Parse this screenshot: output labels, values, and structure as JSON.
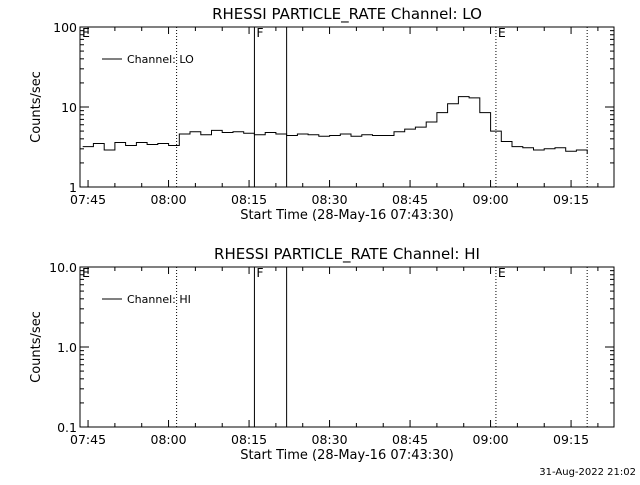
{
  "footer": {
    "timestamp": "31-Aug-2022 21:02"
  },
  "chart_data": [
    {
      "type": "line",
      "title": "RHESSI PARTICLE_RATE Channel: LO",
      "xlabel": "Start Time (28-May-16 07:43:30)",
      "ylabel": "Counts/sec",
      "yscale": "log",
      "ylim": [
        1,
        100
      ],
      "xlim": [
        "07:43:30",
        "09:23:00"
      ],
      "xticks": [
        "07:45",
        "08:00",
        "08:15",
        "08:30",
        "08:45",
        "09:00",
        "09:15"
      ],
      "yticks": [
        "1",
        "10",
        "100"
      ],
      "legend": {
        "placement": "top-left",
        "entries": [
          "Channel: LO"
        ]
      },
      "markers": [
        {
          "label": "E",
          "time": "07:43:30",
          "style": "dotted"
        },
        {
          "label": "",
          "time": "08:01:30",
          "style": "dotted"
        },
        {
          "label": "F",
          "time": "08:16:00",
          "style": "solid"
        },
        {
          "label": "",
          "time": "08:22:00",
          "style": "solid"
        },
        {
          "label": "E",
          "time": "09:01:00",
          "style": "dotted"
        },
        {
          "label": "",
          "time": "09:18:00",
          "style": "dotted"
        }
      ],
      "series": [
        {
          "name": "Channel: LO",
          "x": [
            "07:44",
            "07:46",
            "07:48",
            "07:50",
            "07:52",
            "07:54",
            "07:56",
            "07:58",
            "08:00",
            "08:02",
            "08:04",
            "08:06",
            "08:08",
            "08:10",
            "08:12",
            "08:14",
            "08:16",
            "08:18",
            "08:20",
            "08:22",
            "08:24",
            "08:26",
            "08:28",
            "08:30",
            "08:32",
            "08:34",
            "08:36",
            "08:38",
            "08:40",
            "08:42",
            "08:44",
            "08:46",
            "08:48",
            "08:50",
            "08:52",
            "08:54",
            "08:56",
            "08:58",
            "09:00",
            "09:02",
            "09:04",
            "09:06",
            "09:08",
            "09:10",
            "09:12",
            "09:14",
            "09:16",
            "09:18"
          ],
          "y": [
            3.2,
            3.5,
            2.9,
            3.6,
            3.3,
            3.6,
            3.4,
            3.5,
            3.3,
            4.6,
            4.9,
            4.5,
            5.1,
            4.8,
            4.9,
            4.7,
            4.5,
            4.8,
            4.6,
            4.4,
            4.6,
            4.5,
            4.3,
            4.4,
            4.6,
            4.3,
            4.5,
            4.4,
            4.4,
            4.9,
            5.3,
            5.6,
            6.5,
            8.5,
            11.0,
            13.5,
            13.0,
            8.5,
            5.0,
            3.7,
            3.2,
            3.1,
            2.9,
            3.0,
            3.1,
            2.8,
            2.9,
            2.6
          ]
        }
      ]
    },
    {
      "type": "line",
      "title": "RHESSI PARTICLE_RATE Channel: HI",
      "xlabel": "Start Time (28-May-16 07:43:30)",
      "ylabel": "Counts/sec",
      "yscale": "log",
      "ylim": [
        0.1,
        10
      ],
      "xlim": [
        "07:43:30",
        "09:23:00"
      ],
      "xticks": [
        "07:45",
        "08:00",
        "08:15",
        "08:30",
        "08:45",
        "09:00",
        "09:15"
      ],
      "yticks": [
        "0.1",
        "1.0",
        "10.0"
      ],
      "legend": {
        "placement": "top-left",
        "entries": [
          "Channel: HI"
        ]
      },
      "markers": [
        {
          "label": "E",
          "time": "07:43:30",
          "style": "dotted"
        },
        {
          "label": "",
          "time": "08:01:30",
          "style": "dotted"
        },
        {
          "label": "F",
          "time": "08:16:00",
          "style": "solid"
        },
        {
          "label": "",
          "time": "08:22:00",
          "style": "solid"
        },
        {
          "label": "E",
          "time": "09:01:00",
          "style": "dotted"
        },
        {
          "label": "",
          "time": "09:18:00",
          "style": "dotted"
        }
      ],
      "series": [
        {
          "name": "Channel: HI",
          "x": [],
          "y": []
        }
      ]
    }
  ]
}
